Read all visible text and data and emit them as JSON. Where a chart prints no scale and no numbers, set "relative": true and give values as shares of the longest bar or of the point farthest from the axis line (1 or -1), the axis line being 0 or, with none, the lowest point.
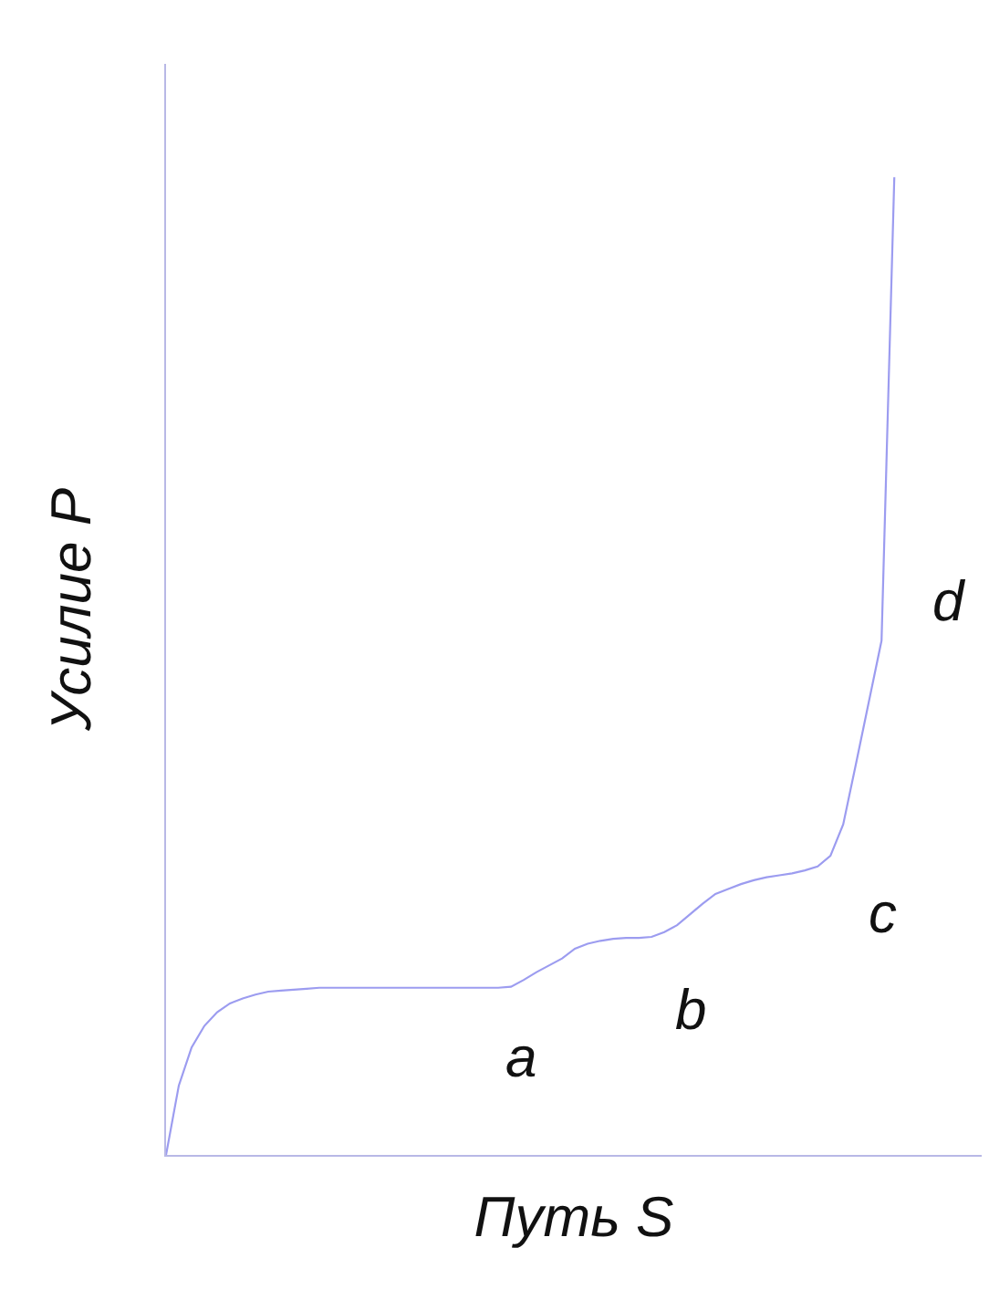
{
  "chart_data": {
    "type": "line",
    "relative": true,
    "xlabel": "Путь S",
    "ylabel": "Усилие P",
    "categories": [
      null,
      null,
      null,
      null,
      null,
      null,
      null,
      null,
      null,
      null,
      null,
      null,
      null,
      null,
      null,
      null,
      null,
      null,
      null,
      null,
      null,
      null,
      null,
      null,
      null,
      null,
      null,
      null,
      null,
      null,
      null,
      null,
      null,
      null,
      null,
      null,
      null,
      null,
      null,
      null,
      null,
      null,
      null,
      null,
      null,
      null,
      null,
      null,
      null,
      null,
      null,
      null,
      null,
      null,
      null,
      null,
      null,
      null
    ],
    "color": "#9c9cf0",
    "values": [
      0,
      0.071,
      0.11,
      0.132,
      0.146,
      0.155,
      0.16,
      0.164,
      0.167,
      0.168,
      0.169,
      0.17,
      0.171,
      0.171,
      0.171,
      0.171,
      0.171,
      0.171,
      0.171,
      0.171,
      0.171,
      0.171,
      0.171,
      0.171,
      0.171,
      0.171,
      0.171,
      0.172,
      0.179,
      0.187,
      0.194,
      0.201,
      0.211,
      0.216,
      0.219,
      0.221,
      0.222,
      0.222,
      0.223,
      0.228,
      0.235,
      0.246,
      0.257,
      0.267,
      0.272,
      0.277,
      0.281,
      0.284,
      0.286,
      0.288,
      0.291,
      0.295,
      0.306,
      0.338,
      0.4,
      0.463,
      0.526,
      1.0
    ],
    "annotations": [
      {
        "text": "a",
        "y": 0.172
      },
      {
        "text": "b",
        "y": 0.246
      },
      "c",
      "d"
    ]
  }
}
